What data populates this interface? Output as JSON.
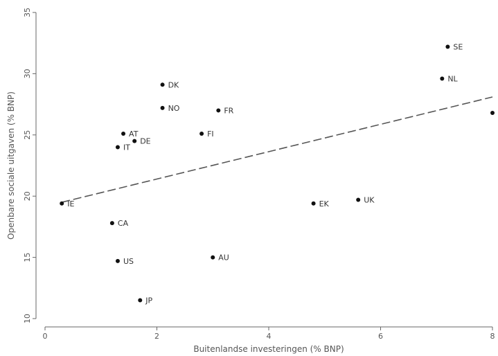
{
  "chart_data": {
    "type": "scatter",
    "title": "",
    "xlabel": "Buitenlandse investeringen (% BNP)",
    "ylabel": "Openbare sociale uitgaven (% BNP)",
    "xlim": [
      0,
      8
    ],
    "ylim": [
      10,
      35
    ],
    "xticks": [
      "0",
      "2",
      "4",
      "6",
      "8"
    ],
    "yticks": [
      "10",
      "15",
      "20",
      "25",
      "30",
      "35"
    ],
    "grid": false,
    "points": [
      {
        "label": "SE",
        "x": 7.2,
        "y": 32.2
      },
      {
        "label": "NL",
        "x": 7.1,
        "y": 29.6
      },
      {
        "label": "",
        "x": 8.0,
        "y": 26.8
      },
      {
        "label": "DK",
        "x": 2.1,
        "y": 29.1
      },
      {
        "label": "NO",
        "x": 2.1,
        "y": 27.2
      },
      {
        "label": "FR",
        "x": 3.1,
        "y": 27.0
      },
      {
        "label": "FI",
        "x": 2.8,
        "y": 25.1
      },
      {
        "label": "AT",
        "x": 1.4,
        "y": 25.1
      },
      {
        "label": "DE",
        "x": 1.6,
        "y": 24.5
      },
      {
        "label": "IT",
        "x": 1.3,
        "y": 24.0
      },
      {
        "label": "IE",
        "x": 0.3,
        "y": 19.4
      },
      {
        "label": "EK",
        "x": 4.8,
        "y": 19.4
      },
      {
        "label": "UK",
        "x": 5.6,
        "y": 19.7
      },
      {
        "label": "CA",
        "x": 1.2,
        "y": 17.8
      },
      {
        "label": "US",
        "x": 1.3,
        "y": 14.7
      },
      {
        "label": "AU",
        "x": 3.0,
        "y": 15.0
      },
      {
        "label": "JP",
        "x": 1.7,
        "y": 11.5
      }
    ],
    "fit_line": {
      "x": [
        0.3,
        8.0
      ],
      "y": [
        19.5,
        28.1
      ],
      "style": "dashed"
    }
  }
}
